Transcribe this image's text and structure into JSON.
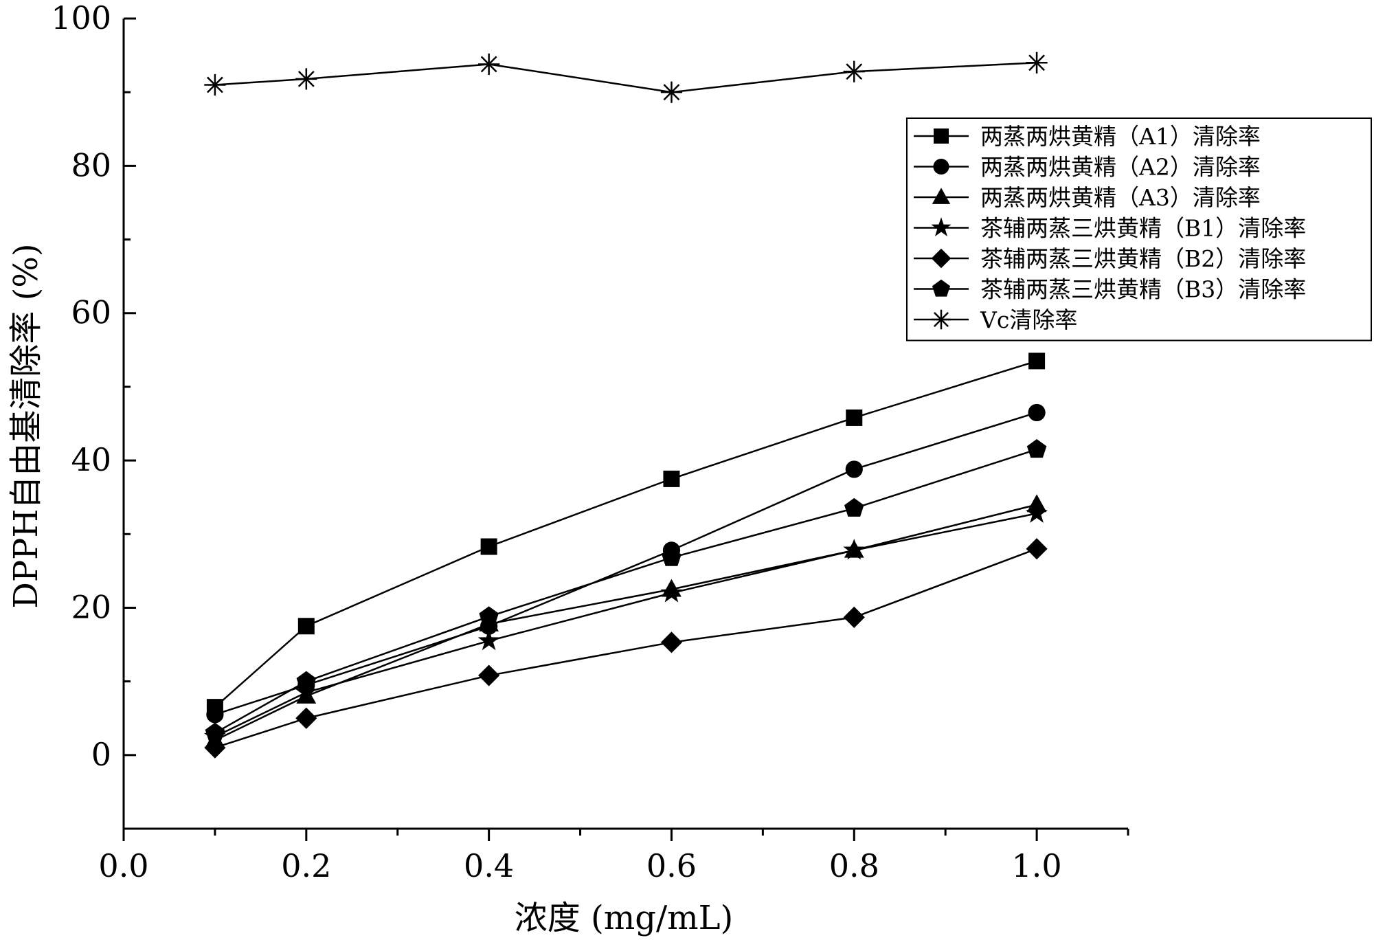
{
  "chart_data": {
    "type": "line",
    "x": [
      0.1,
      0.2,
      0.4,
      0.6,
      0.8,
      1.0
    ],
    "xlim": [
      0.0,
      1.1
    ],
    "ylim": [
      -10,
      100
    ],
    "xticks": [
      0.0,
      0.2,
      0.4,
      0.6,
      0.8,
      1.0
    ],
    "xtick_labels": [
      "0.0",
      "0.2",
      "0.4",
      "0.6",
      "0.8",
      "1.0"
    ],
    "yticks": [
      0,
      20,
      40,
      60,
      80,
      100
    ],
    "ytick_labels": [
      "0",
      "20",
      "40",
      "60",
      "80",
      "100"
    ],
    "xlabel": "浓度 (mg/mL)",
    "ylabel": "DPPH自由基清除率 (%)",
    "legend_position": "top-right",
    "series": [
      {
        "name": "两蒸两烘黄精（A1）清除率",
        "marker": "square",
        "values": [
          6.5,
          17.5,
          28.3,
          37.5,
          45.8,
          53.5
        ]
      },
      {
        "name": "两蒸两烘黄精（A2）清除率",
        "marker": "circle",
        "values": [
          5.5,
          9.5,
          17.5,
          27.8,
          38.8,
          46.5
        ]
      },
      {
        "name": "两蒸两烘黄精（A3）清除率",
        "marker": "triangle",
        "values": [
          2.0,
          8.0,
          17.8,
          22.5,
          27.8,
          34.0
        ]
      },
      {
        "name": "茶辅两蒸三烘黄精（B1）清除率",
        "marker": "star",
        "values": [
          2.5,
          8.5,
          15.5,
          22.0,
          27.8,
          32.8
        ]
      },
      {
        "name": "茶辅两蒸三烘黄精（B2）清除率",
        "marker": "diamond",
        "values": [
          1.0,
          5.0,
          10.8,
          15.3,
          18.7,
          28.0
        ]
      },
      {
        "name": "茶辅两蒸三烘黄精（B3）清除率",
        "marker": "pentagon",
        "values": [
          3.0,
          10.0,
          18.8,
          26.8,
          33.5,
          41.5
        ]
      },
      {
        "name": "Vc清除率",
        "marker": "asterisk",
        "values": [
          91.0,
          91.8,
          93.8,
          90.0,
          92.8,
          94.0
        ]
      }
    ]
  }
}
